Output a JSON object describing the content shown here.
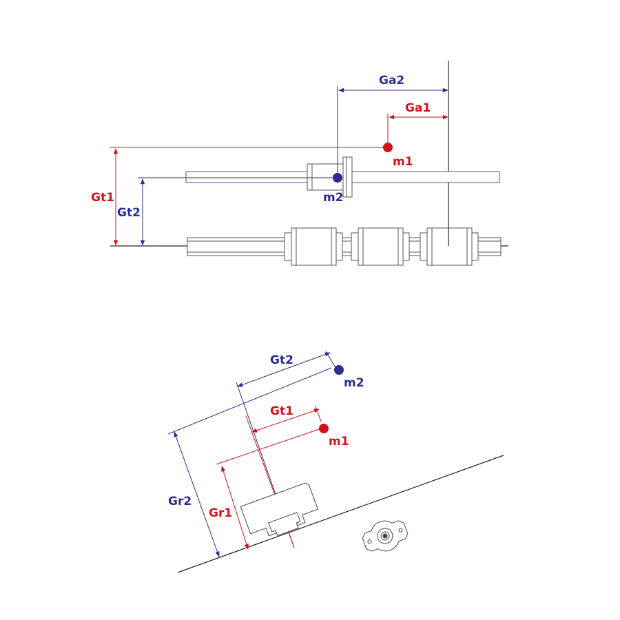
{
  "colors": {
    "red": "#d0121b",
    "blue": "#2b2d8f",
    "line": "#222222",
    "part_stroke": "#444444"
  },
  "top_view": {
    "labels": {
      "ga2": "Ga2",
      "ga1": "Ga1",
      "m1": "m1",
      "m2": "m2",
      "gt1": "Gt1",
      "gt2": "Gt2"
    }
  },
  "bottom_view": {
    "labels": {
      "gt2": "Gt2",
      "m2": "m2",
      "gt1": "Gt1",
      "m1": "m1",
      "gr2": "Gr2",
      "gr1": "Gr1"
    }
  }
}
